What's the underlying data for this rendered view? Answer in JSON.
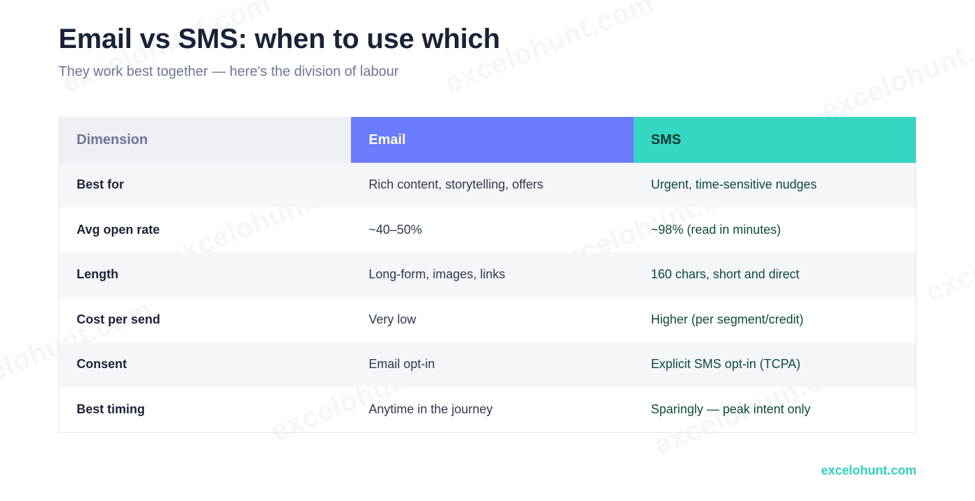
{
  "title": "Email vs SMS: when to use which",
  "subtitle": "They work best together — here's the division of labour",
  "table": {
    "headers": [
      "Dimension",
      "Email",
      "SMS"
    ],
    "rows": [
      [
        "Best for",
        "Rich content, storytelling, offers",
        "Urgent, time-sensitive nudges"
      ],
      [
        "Avg open rate",
        "~40–50%",
        "~98% (read in minutes)"
      ],
      [
        "Length",
        "Long-form, images, links",
        "160 chars, short and direct"
      ],
      [
        "Cost per send",
        "Very low",
        "Higher (per segment/credit)"
      ],
      [
        "Consent",
        "Email opt-in",
        "Explicit SMS opt-in (TCPA)"
      ],
      [
        "Best timing",
        "Anytime in the journey",
        "Sparingly — peak intent only"
      ]
    ]
  },
  "footer": "excelohunt.com",
  "watermark_text": "excelohunt.com",
  "colors": {
    "email_header": "#6a7cfd",
    "sms_header": "#35d6c2",
    "brand": "#2fd1bd"
  }
}
